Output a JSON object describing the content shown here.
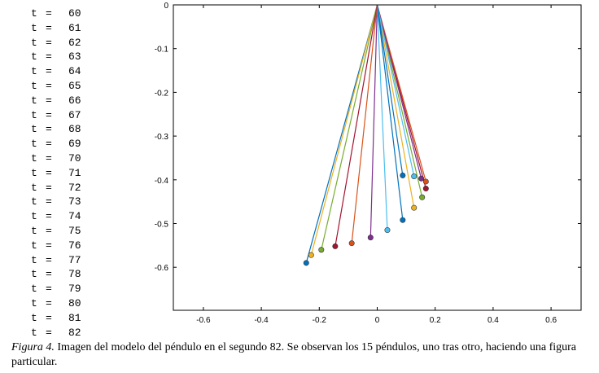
{
  "t_list": {
    "label": "t",
    "eq": "=",
    "values": [
      "60",
      "61",
      "62",
      "63",
      "64",
      "65",
      "66",
      "67",
      "68",
      "69",
      "70",
      "71",
      "72",
      "73",
      "74",
      "75",
      "76",
      "77",
      "78",
      "79",
      "80",
      "81",
      "82"
    ]
  },
  "caption": {
    "label": "Figura 4.",
    "text": "Imagen del modelo del péndulo en el segundo 82. Se observan los 15 péndulos, uno tras otro, haciendo una figura particular."
  },
  "chart_data": {
    "type": "line",
    "title": "",
    "xlabel": "",
    "ylabel": "",
    "xlim": [
      -0.7,
      0.7
    ],
    "ylim": [
      -0.7,
      0
    ],
    "xticks": [
      "-0.6",
      "-0.4",
      "-0.2",
      "0",
      "0.2",
      "0.4",
      "0.6"
    ],
    "yticks": [
      "0",
      "-0.1",
      "-0.2",
      "-0.3",
      "-0.4",
      "-0.5",
      "-0.6"
    ],
    "pivot": [
      0,
      0
    ],
    "pendulums": [
      {
        "x": -0.245,
        "y": -0.59,
        "color": "#0072BD"
      },
      {
        "x": -0.228,
        "y": -0.572,
        "color": "#EDB120"
      },
      {
        "x": -0.193,
        "y": -0.56,
        "color": "#77AC30"
      },
      {
        "x": -0.145,
        "y": -0.552,
        "color": "#A2142F"
      },
      {
        "x": -0.088,
        "y": -0.545,
        "color": "#D95319"
      },
      {
        "x": -0.023,
        "y": -0.532,
        "color": "#7E2F8E"
      },
      {
        "x": 0.035,
        "y": -0.515,
        "color": "#4DBEEE"
      },
      {
        "x": 0.088,
        "y": -0.492,
        "color": "#0072BD"
      },
      {
        "x": 0.127,
        "y": -0.464,
        "color": "#EDB120"
      },
      {
        "x": 0.155,
        "y": -0.44,
        "color": "#77AC30"
      },
      {
        "x": 0.168,
        "y": -0.42,
        "color": "#A2142F"
      },
      {
        "x": 0.168,
        "y": -0.404,
        "color": "#D95319"
      },
      {
        "x": 0.152,
        "y": -0.397,
        "color": "#7E2F8E"
      },
      {
        "x": 0.127,
        "y": -0.392,
        "color": "#4DBEEE"
      },
      {
        "x": 0.088,
        "y": -0.39,
        "color": "#0072BD"
      }
    ]
  }
}
